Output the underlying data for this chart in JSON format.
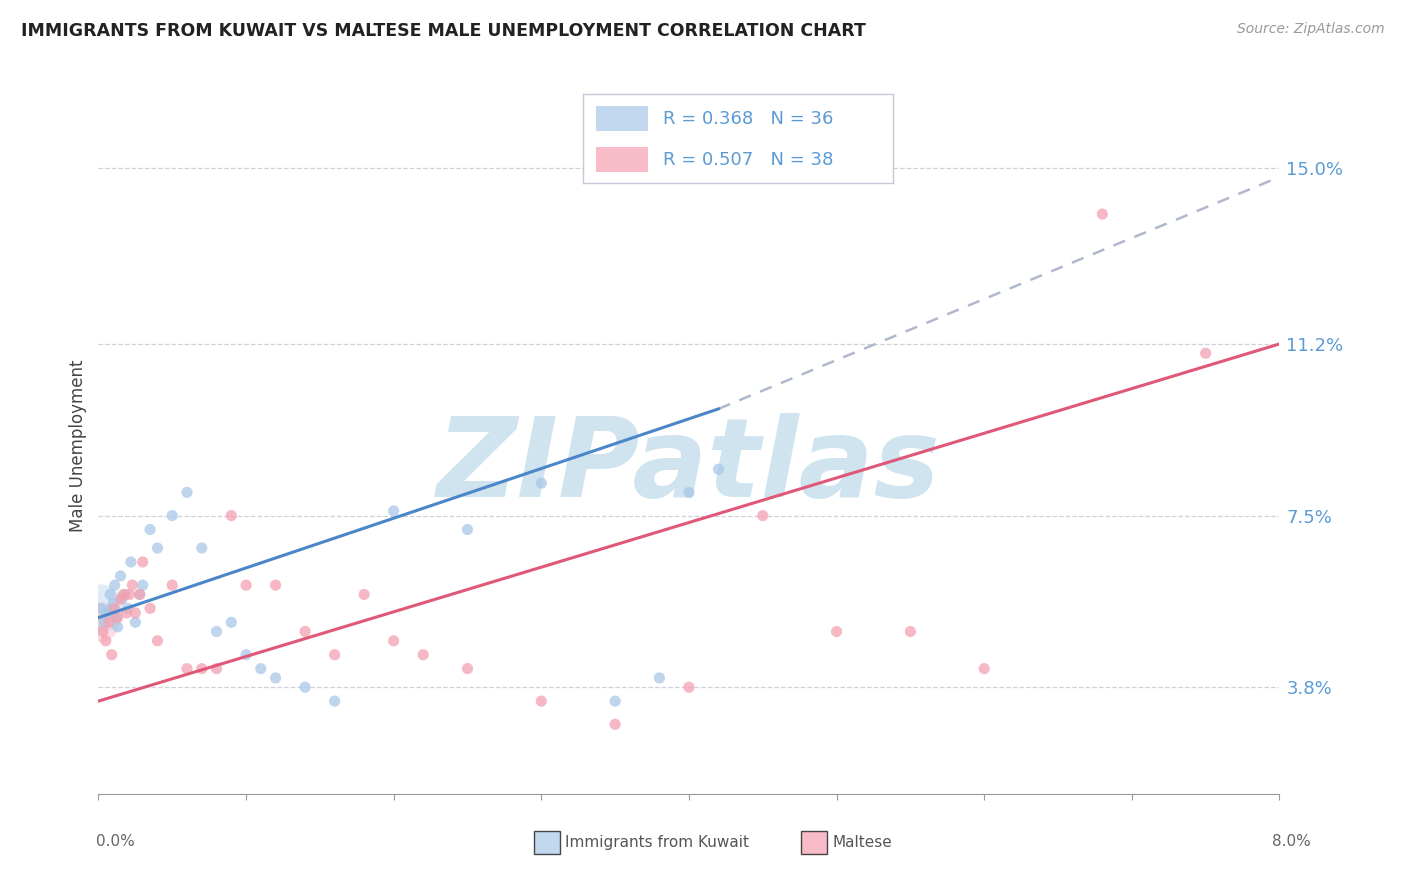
{
  "title": "IMMIGRANTS FROM KUWAIT VS MALTESE MALE UNEMPLOYMENT CORRELATION CHART",
  "source": "Source: ZipAtlas.com",
  "ylabel": "Male Unemployment",
  "y_ticks_right": [
    3.8,
    7.5,
    11.2,
    15.0
  ],
  "y_tick_labels_right": [
    "3.8%",
    "7.5%",
    "11.2%",
    "15.0%"
  ],
  "xlim": [
    0.0,
    8.0
  ],
  "ylim": [
    1.5,
    16.5
  ],
  "legend_label1": "Immigrants from Kuwait",
  "legend_label2": "Maltese",
  "blue_color": "#a8c8e8",
  "pink_color": "#f4a0b0",
  "blue_line_color": "#4a86c8",
  "pink_line_color": "#e05878",
  "dashed_line_color": "#b0b8cc",
  "title_color": "#222222",
  "right_axis_color": "#5b9bd5",
  "watermark_color": "#d0e4f0",
  "watermark_text": "ZIPatlas",
  "legend_text_color": "#5b9bd5",
  "legend_r1": "R = 0.368",
  "legend_n1": "N = 36",
  "legend_r2": "R = 0.507",
  "legend_n2": "N = 38",
  "blue_line_x0": 0.0,
  "blue_line_y0": 5.3,
  "blue_line_x1": 4.2,
  "blue_line_y1": 9.8,
  "pink_line_x0": 0.0,
  "pink_line_y0": 3.5,
  "pink_line_x1": 8.0,
  "pink_line_y1": 11.2,
  "dash_line_x0": 4.2,
  "dash_line_y0": 9.8,
  "dash_line_x1": 8.0,
  "dash_line_y1": 14.8,
  "blue_x": [
    0.02,
    0.04,
    0.06,
    0.08,
    0.09,
    0.1,
    0.11,
    0.12,
    0.13,
    0.15,
    0.16,
    0.18,
    0.2,
    0.22,
    0.25,
    0.28,
    0.3,
    0.35,
    0.4,
    0.5,
    0.6,
    0.7,
    0.8,
    0.9,
    1.0,
    1.1,
    1.2,
    1.4,
    1.6,
    2.0,
    2.5,
    3.0,
    3.5,
    3.8,
    4.0,
    4.2
  ],
  "blue_y": [
    5.5,
    5.2,
    5.4,
    5.8,
    5.5,
    5.6,
    6.0,
    5.3,
    5.1,
    6.2,
    5.7,
    5.8,
    5.5,
    6.5,
    5.2,
    5.8,
    6.0,
    7.2,
    6.8,
    7.5,
    8.0,
    6.8,
    5.0,
    5.2,
    4.5,
    4.2,
    4.0,
    3.8,
    3.5,
    7.6,
    7.2,
    8.2,
    3.5,
    4.0,
    8.0,
    8.5
  ],
  "blue_x_big": [
    0.02
  ],
  "blue_y_big": [
    5.5
  ],
  "pink_x": [
    0.03,
    0.05,
    0.07,
    0.09,
    0.11,
    0.13,
    0.15,
    0.17,
    0.19,
    0.21,
    0.23,
    0.25,
    0.28,
    0.3,
    0.35,
    0.4,
    0.5,
    0.6,
    0.7,
    0.8,
    0.9,
    1.0,
    1.2,
    1.4,
    1.6,
    1.8,
    2.0,
    2.2,
    2.5,
    3.0,
    3.5,
    4.0,
    4.5,
    5.0,
    5.5,
    6.0,
    6.8,
    7.5
  ],
  "pink_y": [
    5.0,
    4.8,
    5.2,
    4.5,
    5.5,
    5.3,
    5.7,
    5.8,
    5.4,
    5.8,
    6.0,
    5.4,
    5.8,
    6.5,
    5.5,
    4.8,
    6.0,
    4.2,
    4.2,
    4.2,
    7.5,
    6.0,
    6.0,
    5.0,
    4.5,
    5.8,
    4.8,
    4.5,
    4.2,
    3.5,
    3.0,
    3.8,
    7.5,
    5.0,
    5.0,
    4.2,
    14.0,
    11.0
  ]
}
